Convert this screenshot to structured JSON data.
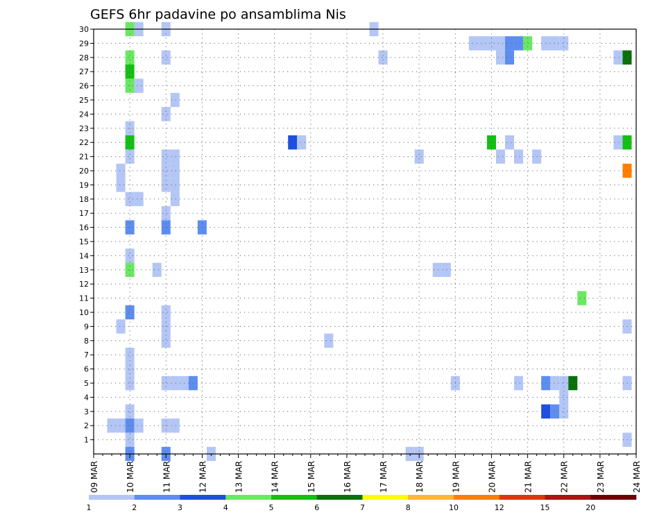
{
  "chart_data": {
    "type": "heatmap",
    "title": "GEFS 6hr padavine po ansamblima Nis",
    "x_ticks": [
      "09 MAR",
      "10 MAR",
      "11 MAR",
      "12 MAR",
      "13 MAR",
      "14 MAR",
      "15 MAR",
      "16 MAR",
      "17 MAR",
      "18 MAR",
      "19 MAR",
      "20 MAR",
      "21 MAR",
      "22 MAR",
      "23 MAR",
      "24 MAR"
    ],
    "y_ticks": [
      "1",
      "2",
      "3",
      "4",
      "5",
      "6",
      "7",
      "8",
      "9",
      "10",
      "11",
      "12",
      "13",
      "14",
      "15",
      "16",
      "17",
      "18",
      "19",
      "20",
      "21",
      "22",
      "23",
      "24",
      "25",
      "26",
      "27",
      "28",
      "29",
      "30"
    ],
    "xlim": [
      0,
      60
    ],
    "ylim": [
      0,
      30
    ],
    "x_unit": "6-hour steps from 09 MAR 00Z",
    "grid": true,
    "colorbar": {
      "levels": [
        "1",
        "2",
        "3",
        "4",
        "5",
        "6",
        "7",
        "8",
        "10",
        "12",
        "15",
        "20"
      ],
      "colors": [
        "#b3c6f5",
        "#5e8df0",
        "#1d4fe0",
        "#6be862",
        "#13c013",
        "#0a700a",
        "#fffc00",
        "#ffb72e",
        "#ff7e00",
        "#e43210",
        "#b31010",
        "#6e0000"
      ]
    },
    "cells": [
      {
        "x": 4,
        "y": 30,
        "c": 3
      },
      {
        "x": 5,
        "y": 30,
        "c": 0
      },
      {
        "x": 8,
        "y": 30,
        "c": 0
      },
      {
        "x": 31,
        "y": 30,
        "c": 0
      },
      {
        "x": 42,
        "y": 29,
        "c": 0
      },
      {
        "x": 43,
        "y": 29,
        "c": 0
      },
      {
        "x": 44,
        "y": 29,
        "c": 0
      },
      {
        "x": 45,
        "y": 29,
        "c": 0
      },
      {
        "x": 46,
        "y": 29,
        "c": 1
      },
      {
        "x": 47,
        "y": 29,
        "c": 1
      },
      {
        "x": 48,
        "y": 29,
        "c": 3
      },
      {
        "x": 50,
        "y": 29,
        "c": 0
      },
      {
        "x": 51,
        "y": 29,
        "c": 0
      },
      {
        "x": 52,
        "y": 29,
        "c": 0
      },
      {
        "x": 4,
        "y": 28,
        "c": 3
      },
      {
        "x": 8,
        "y": 28,
        "c": 0
      },
      {
        "x": 32,
        "y": 28,
        "c": 0
      },
      {
        "x": 45,
        "y": 28,
        "c": 0
      },
      {
        "x": 46,
        "y": 28,
        "c": 1
      },
      {
        "x": 58,
        "y": 28,
        "c": 0
      },
      {
        "x": 59,
        "y": 28,
        "c": 5
      },
      {
        "x": 4,
        "y": 27,
        "c": 4
      },
      {
        "x": 4,
        "y": 26,
        "c": 3
      },
      {
        "x": 5,
        "y": 26,
        "c": 0
      },
      {
        "x": 9,
        "y": 25,
        "c": 0
      },
      {
        "x": 8,
        "y": 24,
        "c": 0
      },
      {
        "x": 4,
        "y": 23,
        "c": 0
      },
      {
        "x": 4,
        "y": 22,
        "c": 4
      },
      {
        "x": 22,
        "y": 22,
        "c": 2
      },
      {
        "x": 23,
        "y": 22,
        "c": 0
      },
      {
        "x": 44,
        "y": 22,
        "c": 4
      },
      {
        "x": 46,
        "y": 22,
        "c": 0
      },
      {
        "x": 58,
        "y": 22,
        "c": 0
      },
      {
        "x": 59,
        "y": 22,
        "c": 4
      },
      {
        "x": 4,
        "y": 21,
        "c": 0
      },
      {
        "x": 8,
        "y": 21,
        "c": 0
      },
      {
        "x": 9,
        "y": 21,
        "c": 0
      },
      {
        "x": 36,
        "y": 21,
        "c": 0
      },
      {
        "x": 45,
        "y": 21,
        "c": 0
      },
      {
        "x": 47,
        "y": 21,
        "c": 0
      },
      {
        "x": 49,
        "y": 21,
        "c": 0
      },
      {
        "x": 3,
        "y": 20,
        "c": 0
      },
      {
        "x": 8,
        "y": 20,
        "c": 0
      },
      {
        "x": 9,
        "y": 20,
        "c": 0
      },
      {
        "x": 59,
        "y": 20,
        "c": 8
      },
      {
        "x": 3,
        "y": 19,
        "c": 0
      },
      {
        "x": 8,
        "y": 19,
        "c": 0
      },
      {
        "x": 9,
        "y": 19,
        "c": 0
      },
      {
        "x": 4,
        "y": 18,
        "c": 0
      },
      {
        "x": 5,
        "y": 18,
        "c": 0
      },
      {
        "x": 9,
        "y": 18,
        "c": 0
      },
      {
        "x": 8,
        "y": 17,
        "c": 0
      },
      {
        "x": 4,
        "y": 16,
        "c": 1
      },
      {
        "x": 8,
        "y": 16,
        "c": 1
      },
      {
        "x": 12,
        "y": 16,
        "c": 1
      },
      {
        "x": 4,
        "y": 14,
        "c": 0
      },
      {
        "x": 4,
        "y": 13,
        "c": 3
      },
      {
        "x": 7,
        "y": 13,
        "c": 0
      },
      {
        "x": 38,
        "y": 13,
        "c": 0
      },
      {
        "x": 39,
        "y": 13,
        "c": 0
      },
      {
        "x": 54,
        "y": 11,
        "c": 3
      },
      {
        "x": 4,
        "y": 10,
        "c": 1
      },
      {
        "x": 8,
        "y": 10,
        "c": 0
      },
      {
        "x": 3,
        "y": 9,
        "c": 0
      },
      {
        "x": 8,
        "y": 9,
        "c": 0
      },
      {
        "x": 59,
        "y": 9,
        "c": 0
      },
      {
        "x": 8,
        "y": 8,
        "c": 0
      },
      {
        "x": 26,
        "y": 8,
        "c": 0
      },
      {
        "x": 4,
        "y": 7,
        "c": 0
      },
      {
        "x": 4,
        "y": 6,
        "c": 0
      },
      {
        "x": 4,
        "y": 5,
        "c": 0
      },
      {
        "x": 8,
        "y": 5,
        "c": 0
      },
      {
        "x": 9,
        "y": 5,
        "c": 0
      },
      {
        "x": 10,
        "y": 5,
        "c": 0
      },
      {
        "x": 11,
        "y": 5,
        "c": 1
      },
      {
        "x": 40,
        "y": 5,
        "c": 0
      },
      {
        "x": 47,
        "y": 5,
        "c": 0
      },
      {
        "x": 50,
        "y": 5,
        "c": 1
      },
      {
        "x": 51,
        "y": 5,
        "c": 0
      },
      {
        "x": 52,
        "y": 5,
        "c": 0
      },
      {
        "x": 53,
        "y": 5,
        "c": 5
      },
      {
        "x": 59,
        "y": 5,
        "c": 0
      },
      {
        "x": 52,
        "y": 4,
        "c": 0
      },
      {
        "x": 4,
        "y": 3,
        "c": 0
      },
      {
        "x": 50,
        "y": 3,
        "c": 2
      },
      {
        "x": 51,
        "y": 3,
        "c": 1
      },
      {
        "x": 52,
        "y": 3,
        "c": 0
      },
      {
        "x": 2,
        "y": 2,
        "c": 0
      },
      {
        "x": 3,
        "y": 2,
        "c": 0
      },
      {
        "x": 4,
        "y": 2,
        "c": 1
      },
      {
        "x": 5,
        "y": 2,
        "c": 0
      },
      {
        "x": 8,
        "y": 2,
        "c": 0
      },
      {
        "x": 9,
        "y": 2,
        "c": 0
      },
      {
        "x": 4,
        "y": 1,
        "c": 0
      },
      {
        "x": 59,
        "y": 1,
        "c": 0
      },
      {
        "x": 4,
        "y": 0,
        "c": 1
      },
      {
        "x": 8,
        "y": 0,
        "c": 1
      },
      {
        "x": 13,
        "y": 0,
        "c": 0
      },
      {
        "x": 35,
        "y": 0,
        "c": 0
      },
      {
        "x": 36,
        "y": 0,
        "c": 0
      }
    ]
  }
}
